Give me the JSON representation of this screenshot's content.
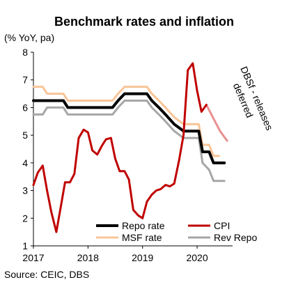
{
  "chart_data": {
    "type": "line",
    "title": "Benchmark rates and inflation",
    "ylabel": "(% YoY, pa)",
    "xlabel": "",
    "ylim": [
      1,
      8
    ],
    "yticks": [
      "1",
      "2",
      "3",
      "4",
      "5",
      "6",
      "7",
      "8"
    ],
    "xlim": [
      2017.0,
      2020.65
    ],
    "xticks": [
      "2017",
      "2018",
      "2019",
      "2020"
    ],
    "grid": false,
    "legend_position": "bottom-right",
    "annotation": {
      "text_line1": "DBSf - releases",
      "text_line2": "deferred"
    },
    "source": "Source: CEIC, DBS",
    "colors": {
      "repo": "#000000",
      "cpi": "#c00000",
      "cpi_forecast": "#e88f8f",
      "msf": "#f8c497",
      "rev_repo": "#a6a6a6"
    },
    "series": [
      {
        "key": "repo",
        "name": "Repo rate",
        "x": [
          2017.0,
          2017.55,
          2017.63,
          2018.45,
          2018.55,
          2018.67,
          2019.08,
          2019.17,
          2019.3,
          2019.42,
          2019.58,
          2019.75,
          2020.03,
          2020.1,
          2020.22,
          2020.3,
          2020.5
        ],
        "y": [
          6.25,
          6.25,
          6.0,
          6.0,
          6.25,
          6.5,
          6.5,
          6.25,
          6.0,
          5.75,
          5.4,
          5.15,
          5.15,
          4.4,
          4.4,
          4.0,
          4.0
        ]
      },
      {
        "key": "msf",
        "name": "MSF rate",
        "x": [
          2017.0,
          2017.17,
          2017.25,
          2017.55,
          2017.63,
          2018.45,
          2018.55,
          2018.67,
          2019.08,
          2019.17,
          2019.3,
          2019.42,
          2019.58,
          2019.75,
          2020.03,
          2020.1,
          2020.22,
          2020.3,
          2020.4
        ],
        "y": [
          6.75,
          6.75,
          6.5,
          6.5,
          6.25,
          6.25,
          6.5,
          6.75,
          6.75,
          6.5,
          6.25,
          6.0,
          5.65,
          5.4,
          5.4,
          4.65,
          4.65,
          4.25,
          4.25
        ]
      },
      {
        "key": "cpi",
        "name": "CPI",
        "x": [
          2017.0,
          2017.08,
          2017.17,
          2017.25,
          2017.33,
          2017.42,
          2017.5,
          2017.58,
          2017.67,
          2017.75,
          2017.83,
          2017.92,
          2018.0,
          2018.08,
          2018.17,
          2018.25,
          2018.33,
          2018.42,
          2018.5,
          2018.58,
          2018.67,
          2018.75,
          2018.83,
          2018.92,
          2019.0,
          2019.08,
          2019.17,
          2019.25,
          2019.33,
          2019.42,
          2019.5,
          2019.58,
          2019.67,
          2019.75,
          2019.83,
          2019.92,
          2020.0,
          2020.08,
          2020.17
        ],
        "y": [
          3.2,
          3.65,
          3.9,
          3.0,
          2.2,
          1.5,
          2.4,
          3.3,
          3.3,
          3.6,
          4.9,
          5.2,
          5.1,
          4.45,
          4.3,
          4.6,
          4.85,
          4.9,
          4.15,
          3.7,
          3.7,
          3.4,
          2.3,
          2.1,
          2.0,
          2.6,
          2.85,
          3.0,
          3.05,
          3.2,
          3.15,
          3.25,
          4.1,
          5.0,
          7.35,
          7.6,
          6.6,
          5.85,
          6.1
        ]
      },
      {
        "key": "cpi_forecast",
        "name": "",
        "x": [
          2020.17,
          2020.3,
          2020.42,
          2020.55
        ],
        "y": [
          6.1,
          5.6,
          5.15,
          4.8
        ]
      },
      {
        "key": "rev_repo",
        "name": "Rev Repo",
        "x": [
          2017.0,
          2017.17,
          2017.25,
          2017.55,
          2017.63,
          2018.45,
          2018.55,
          2018.67,
          2019.08,
          2019.17,
          2019.3,
          2019.42,
          2019.58,
          2019.75,
          2020.03,
          2020.1,
          2020.22,
          2020.3,
          2020.4,
          2020.5
        ],
        "y": [
          5.75,
          5.75,
          6.0,
          6.0,
          5.75,
          5.75,
          6.0,
          6.25,
          6.25,
          6.0,
          5.75,
          5.5,
          5.15,
          4.9,
          4.9,
          4.0,
          3.75,
          3.35,
          3.35,
          3.35
        ]
      }
    ],
    "legend": [
      {
        "key": "repo",
        "label": "Repo rate"
      },
      {
        "key": "cpi",
        "label": "CPI"
      },
      {
        "key": "msf",
        "label": "MSF rate"
      },
      {
        "key": "rev_repo",
        "label": "Rev Repo"
      }
    ]
  }
}
